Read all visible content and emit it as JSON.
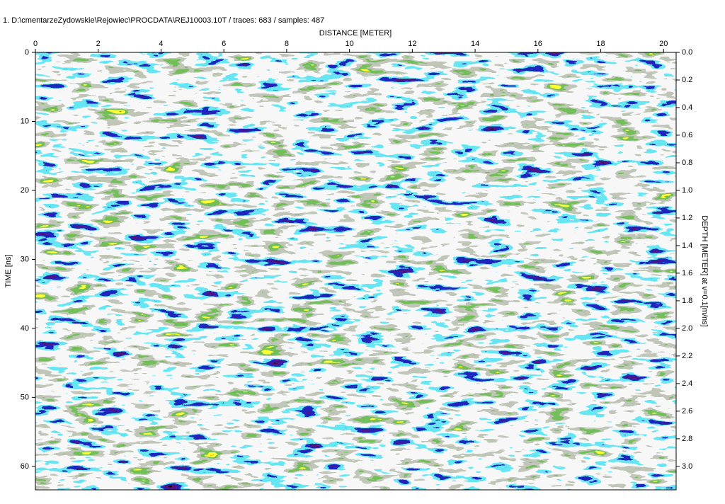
{
  "chart_data": {
    "type": "radargram",
    "title": "1. D:\\cmentarzeZydowskie\\Rejowiec\\PROCDATA\\REJ10003.10T / traces: 683 / samples: 487",
    "x_label": "DISTANCE [METER]",
    "y_label": "TIME [ns]",
    "y2_label": "DEPTH [METER] at v=0.1[m/ns]",
    "xlim": [
      0,
      20.4
    ],
    "xticks": [
      0,
      2,
      4,
      6,
      8,
      10,
      12,
      14,
      16,
      18,
      20
    ],
    "ylim": [
      0,
      63.4
    ],
    "yticks": [
      0,
      10,
      20,
      30,
      40,
      50,
      60
    ],
    "y2lim": [
      0,
      3.17
    ],
    "y2ticks": [
      {
        "value": 0,
        "label": "0.0"
      },
      0.2,
      0.4,
      0.6,
      0.8,
      {
        "value": 1,
        "label": "1.0"
      },
      1.2,
      1.4,
      1.6,
      1.8,
      {
        "value": 2,
        "label": "2.0"
      },
      2.2,
      2.4,
      2.6,
      2.8,
      {
        "value": 3,
        "label": "3.0"
      }
    ]
  }
}
